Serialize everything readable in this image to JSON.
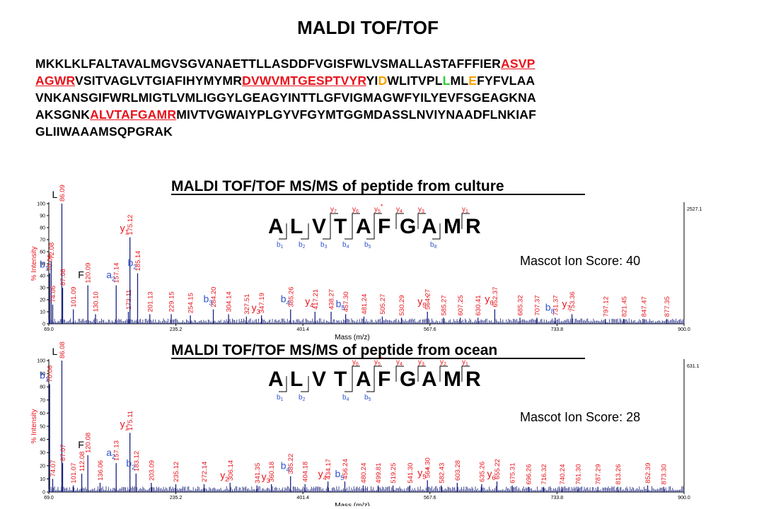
{
  "title": "MALDI TOF/TOF",
  "sequence": [
    [
      {
        "t": "MKKLKLFALTAVALMGVSGVANAETTLLASDDFVGISFWLVSMALLASTAFFFIER",
        "c": "n"
      },
      {
        "t": "ASVP",
        "c": "r"
      }
    ],
    [
      {
        "t": "AGWR",
        "c": "r"
      },
      {
        "t": "VSITVAGLVTGIAFIHYMYMR",
        "c": "n"
      },
      {
        "t": "DVWVMTGESPTVYR",
        "c": "r"
      },
      {
        "t": "YI",
        "c": "n"
      },
      {
        "t": "D",
        "c": "o"
      },
      {
        "t": "WLITVPL",
        "c": "n"
      },
      {
        "t": "L",
        "c": "g"
      },
      {
        "t": "ML",
        "c": "n"
      },
      {
        "t": "E",
        "c": "o"
      },
      {
        "t": "FYFVLAA",
        "c": "n"
      }
    ],
    [
      {
        "t": "VNKANSGIFWRLMIGTLVMLIGGYLGEAGYINTTLGFVIGMAGWFYILYEVFSGEAGKNA",
        "c": "n"
      }
    ],
    [
      {
        "t": "AKSGNK",
        "c": "n"
      },
      {
        "t": "ALVTAFGAMR",
        "c": "r"
      },
      {
        "t": "MIVTVGWAIYPLGYVFGYMTGGMDASSLNVIYNAADFLNKIAF",
        "c": "n"
      }
    ],
    [
      {
        "t": "GLIIWAAAMSQPGRAK",
        "c": "n"
      }
    ]
  ],
  "colors": {
    "red": "#e8141c",
    "orange": "#f5a000",
    "green": "#33cc33",
    "blue": "#3355cc",
    "spectrum": "#1a237e"
  },
  "chart_data": [
    {
      "type": "bar",
      "title": "MALDI TOF/TOF MS/MS of peptide from culture",
      "xlabel": "Mass (m/z)",
      "ylabel": "% Intensity",
      "xlim": [
        69.0,
        900.0
      ],
      "ylim": [
        0,
        100
      ],
      "x_ticks": [
        "69.0",
        "235.2",
        "401.4",
        "567.6",
        "733.8",
        "900.0"
      ],
      "y_ticks": [
        "0",
        "10",
        "20",
        "30",
        "40",
        "50",
        "60",
        "70",
        "80",
        "90",
        "100"
      ],
      "max_label": "2527.1",
      "peptide": [
        "A",
        "L",
        "V",
        "T",
        "A",
        "F",
        "G",
        "A",
        "M",
        "R"
      ],
      "y_ions": [
        {
          "gap": 3,
          "label": "y7"
        },
        {
          "gap": 4,
          "label": "y6"
        },
        {
          "gap": 5,
          "label": "y5*"
        },
        {
          "gap": 6,
          "label": "y4"
        },
        {
          "gap": 7,
          "label": "y3"
        },
        {
          "gap": 9,
          "label": "y1"
        }
      ],
      "b_ions": [
        {
          "gap": 1,
          "label": "b1"
        },
        {
          "gap": 2,
          "label": "b2"
        },
        {
          "gap": 3,
          "label": "b3"
        },
        {
          "gap": 4,
          "label": "b4"
        },
        {
          "gap": 5,
          "label": "b5"
        },
        {
          "gap": 8,
          "label": "b8"
        }
      ],
      "score_text": "Mascot Ion Score: 40",
      "peaks": [
        {
          "mz": 70.06,
          "i": 42
        },
        {
          "mz": 72.08,
          "i": 52
        },
        {
          "mz": 74.06,
          "i": 16
        },
        {
          "mz": 86.09,
          "i": 100
        },
        {
          "mz": 87.08,
          "i": 30
        },
        {
          "mz": 101.09,
          "i": 12
        },
        {
          "mz": 120.09,
          "i": 32
        },
        {
          "mz": 130.1,
          "i": 8
        },
        {
          "mz": 157.14,
          "i": 32
        },
        {
          "mz": 173.11,
          "i": 10
        },
        {
          "mz": 175.12,
          "i": 72
        },
        {
          "mz": 185.14,
          "i": 42
        },
        {
          "mz": 201.13,
          "i": 8
        },
        {
          "mz": 229.15,
          "i": 8
        },
        {
          "mz": 254.15,
          "i": 7
        },
        {
          "mz": 284.2,
          "i": 12
        },
        {
          "mz": 304.14,
          "i": 8
        },
        {
          "mz": 327.51,
          "i": 6
        },
        {
          "mz": 347.19,
          "i": 7
        },
        {
          "mz": 385.26,
          "i": 12
        },
        {
          "mz": 417.21,
          "i": 10
        },
        {
          "mz": 438.27,
          "i": 10
        },
        {
          "mz": 457.3,
          "i": 8
        },
        {
          "mz": 481.24,
          "i": 6
        },
        {
          "mz": 505.27,
          "i": 6
        },
        {
          "mz": 530.29,
          "i": 5
        },
        {
          "mz": 564.27,
          "i": 10
        },
        {
          "mz": 585.27,
          "i": 5
        },
        {
          "mz": 607.25,
          "i": 5
        },
        {
          "mz": 630.41,
          "i": 5
        },
        {
          "mz": 652.37,
          "i": 12
        },
        {
          "mz": 685.32,
          "i": 5
        },
        {
          "mz": 707.37,
          "i": 5
        },
        {
          "mz": 731.37,
          "i": 5
        },
        {
          "mz": 753.36,
          "i": 8
        },
        {
          "mz": 797.12,
          "i": 4
        },
        {
          "mz": 821.45,
          "i": 4
        },
        {
          "mz": 847.47,
          "i": 4
        },
        {
          "mz": 877.35,
          "i": 4
        }
      ],
      "annotations": [
        {
          "text": "b1",
          "mz": 70.06,
          "pos": "top",
          "color": "blue"
        },
        {
          "text": "L",
          "mz": 86.09,
          "pos": "top",
          "color": "black"
        },
        {
          "text": "y1",
          "mz": 175.12,
          "pos": "top",
          "color": "red"
        },
        {
          "text": "F",
          "mz": 120.09,
          "pos": "mid",
          "color": "black"
        },
        {
          "text": "a2",
          "mz": 157.14,
          "pos": "mid",
          "color": "blue"
        },
        {
          "text": "b2",
          "mz": 185.14,
          "pos": "mid",
          "color": "blue"
        },
        {
          "text": "b3",
          "mz": 284.2,
          "pos": "mid",
          "color": "blue"
        },
        {
          "text": "b4",
          "mz": 385.26,
          "pos": "mid",
          "color": "blue"
        },
        {
          "text": "y4",
          "mz": 417.21,
          "pos": "mid",
          "color": "red"
        },
        {
          "text": "b5",
          "mz": 457.3,
          "pos": "mid",
          "color": "blue"
        },
        {
          "text": "y5*",
          "mz": 564.27,
          "pos": "mid",
          "color": "red"
        },
        {
          "text": "y6",
          "mz": 652.37,
          "pos": "mid",
          "color": "red"
        },
        {
          "text": "b8",
          "mz": 731.37,
          "pos": "mid",
          "color": "blue"
        },
        {
          "text": "y7",
          "mz": 753.36,
          "pos": "mid",
          "color": "red"
        },
        {
          "text": "y3",
          "mz": 347.19,
          "pos": "low",
          "color": "red"
        }
      ]
    },
    {
      "type": "bar",
      "title": "MALDI TOF/TOF MS/MS of peptide from ocean",
      "xlabel": "Mass (m/z)",
      "ylabel": "% Intensity",
      "xlim": [
        69.0,
        900.0
      ],
      "ylim": [
        0,
        100
      ],
      "x_ticks": [
        "69.0",
        "235.2",
        "401.4",
        "567.6",
        "733.8",
        "900.0"
      ],
      "y_ticks": [
        "0",
        "10",
        "20",
        "30",
        "40",
        "50",
        "60",
        "70",
        "80",
        "90",
        "100"
      ],
      "max_label": "631.1",
      "peptide": [
        "A",
        "L",
        "V",
        "T",
        "A",
        "F",
        "G",
        "A",
        "M",
        "R"
      ],
      "y_ions": [
        {
          "gap": 4,
          "label": "y6"
        },
        {
          "gap": 5,
          "label": "y5*"
        },
        {
          "gap": 6,
          "label": "y4"
        },
        {
          "gap": 7,
          "label": "y3"
        },
        {
          "gap": 8,
          "label": "y2"
        },
        {
          "gap": 9,
          "label": "y1"
        }
      ],
      "b_ions": [
        {
          "gap": 1,
          "label": "b1"
        },
        {
          "gap": 2,
          "label": "b2"
        },
        {
          "gap": 4,
          "label": "b4"
        },
        {
          "gap": 5,
          "label": "b5"
        }
      ],
      "score_text": "Mascot Ion Score: 28",
      "peaks": [
        {
          "mz": 70.06,
          "i": 82
        },
        {
          "mz": 74.07,
          "i": 10
        },
        {
          "mz": 86.08,
          "i": 100
        },
        {
          "mz": 87.07,
          "i": 22
        },
        {
          "mz": 101.07,
          "i": 5
        },
        {
          "mz": 112.08,
          "i": 14
        },
        {
          "mz": 120.08,
          "i": 28
        },
        {
          "mz": 136.06,
          "i": 7
        },
        {
          "mz": 157.13,
          "i": 22
        },
        {
          "mz": 175.11,
          "i": 45
        },
        {
          "mz": 183.12,
          "i": 14
        },
        {
          "mz": 203.09,
          "i": 7
        },
        {
          "mz": 235.12,
          "i": 6
        },
        {
          "mz": 272.14,
          "i": 6
        },
        {
          "mz": 306.14,
          "i": 7
        },
        {
          "mz": 341.35,
          "i": 5
        },
        {
          "mz": 360.18,
          "i": 6
        },
        {
          "mz": 385.22,
          "i": 12
        },
        {
          "mz": 404.18,
          "i": 6
        },
        {
          "mz": 434.17,
          "i": 8
        },
        {
          "mz": 456.24,
          "i": 8
        },
        {
          "mz": 480.24,
          "i": 5
        },
        {
          "mz": 499.81,
          "i": 5
        },
        {
          "mz": 519.25,
          "i": 5
        },
        {
          "mz": 541.3,
          "i": 5
        },
        {
          "mz": 564.3,
          "i": 9
        },
        {
          "mz": 582.43,
          "i": 5
        },
        {
          "mz": 603.28,
          "i": 7
        },
        {
          "mz": 635.26,
          "i": 6
        },
        {
          "mz": 655.22,
          "i": 8
        },
        {
          "mz": 675.31,
          "i": 5
        },
        {
          "mz": 696.26,
          "i": 4
        },
        {
          "mz": 716.32,
          "i": 4
        },
        {
          "mz": 740.24,
          "i": 4
        },
        {
          "mz": 761.3,
          "i": 4
        },
        {
          "mz": 787.29,
          "i": 4
        },
        {
          "mz": 813.26,
          "i": 4
        },
        {
          "mz": 852.39,
          "i": 5
        },
        {
          "mz": 873.3,
          "i": 4
        }
      ],
      "annotations": [
        {
          "text": "b1",
          "mz": 70.06,
          "pos": "top",
          "color": "blue"
        },
        {
          "text": "L",
          "mz": 86.08,
          "pos": "top",
          "color": "black"
        },
        {
          "text": "y1",
          "mz": 175.11,
          "pos": "top",
          "color": "red"
        },
        {
          "text": "F",
          "mz": 120.08,
          "pos": "mid",
          "color": "black"
        },
        {
          "text": "a2",
          "mz": 157.13,
          "pos": "mid",
          "color": "blue"
        },
        {
          "text": "b2",
          "mz": 183.12,
          "pos": "mid",
          "color": "blue"
        },
        {
          "text": "y2",
          "mz": 306.14,
          "pos": "low",
          "color": "red"
        },
        {
          "text": "y3",
          "mz": 360.18,
          "pos": "low",
          "color": "red"
        },
        {
          "text": "b4",
          "mz": 385.22,
          "pos": "mid",
          "color": "blue"
        },
        {
          "text": "y4",
          "mz": 434.17,
          "pos": "low",
          "color": "red"
        },
        {
          "text": "b5",
          "mz": 456.24,
          "pos": "low",
          "color": "blue"
        },
        {
          "text": "y5*",
          "mz": 564.3,
          "pos": "low",
          "color": "red"
        },
        {
          "text": "y6",
          "mz": 655.22,
          "pos": "low",
          "color": "red"
        }
      ]
    }
  ]
}
